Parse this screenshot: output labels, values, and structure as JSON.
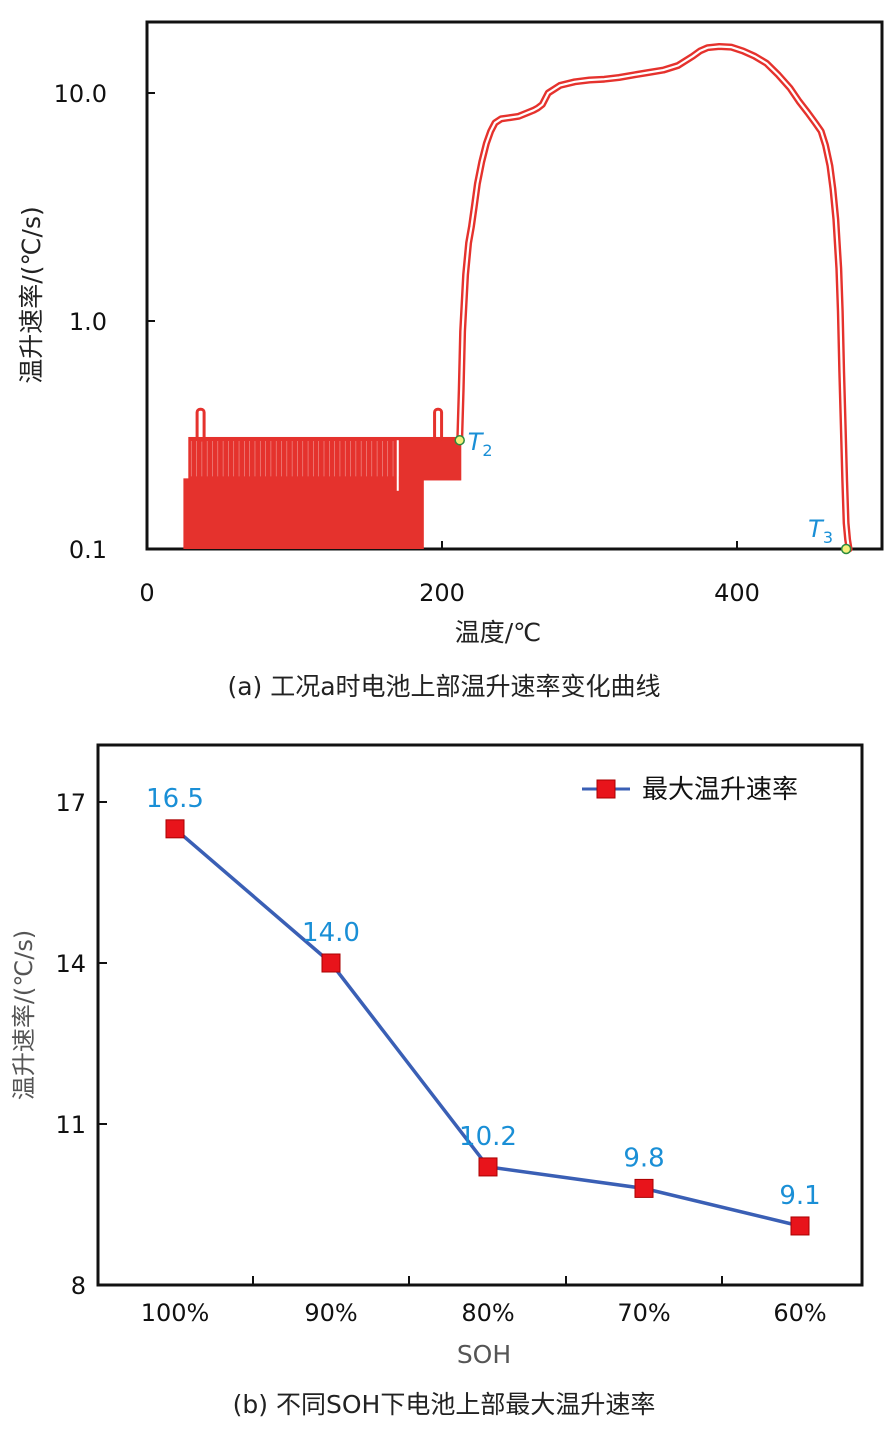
{
  "chart_data": [
    {
      "type": "line",
      "caption": "(a) 工况a时电池上部温升速率变化曲线",
      "xlabel": "温度/℃",
      "ylabel": "温升速率/(℃/s)",
      "yscale": "log",
      "xlim": [
        0,
        500
      ],
      "ylim": [
        0.1,
        20
      ],
      "x_ticks": [
        "0",
        "200",
        "400"
      ],
      "y_ticks": [
        "0.1",
        "1.0",
        "10.0"
      ],
      "series": [
        {
          "color": "#e5322d",
          "x": [
            212,
            213,
            214,
            216,
            218,
            220,
            222,
            224,
            227,
            230,
            233,
            236,
            240,
            246,
            252,
            258,
            262,
            265,
            268,
            272,
            280,
            290,
            300,
            310,
            320,
            330,
            340,
            350,
            360,
            370,
            375,
            380,
            388,
            396,
            404,
            412,
            420,
            428,
            436,
            442,
            448,
            453,
            457,
            460,
            463,
            465,
            467,
            469,
            470,
            471,
            472,
            473,
            474,
            475,
            476
          ],
          "y": [
            0.3,
            0.5,
            0.9,
            1.6,
            2.2,
            2.6,
            3.2,
            4.0,
            5.0,
            6.0,
            6.8,
            7.4,
            7.7,
            7.8,
            7.9,
            8.2,
            8.4,
            8.6,
            8.9,
            10.0,
            10.8,
            11.2,
            11.4,
            11.5,
            11.7,
            12.0,
            12.3,
            12.6,
            13.2,
            14.5,
            15.3,
            15.8,
            16.0,
            15.9,
            15.3,
            14.5,
            13.5,
            12.0,
            10.5,
            9.2,
            8.2,
            7.4,
            6.8,
            5.9,
            4.8,
            3.8,
            2.8,
            1.7,
            1.1,
            0.6,
            0.35,
            0.2,
            0.13,
            0.11,
            0.1
          ]
        }
      ],
      "noise_region": {
        "x": [
          24,
          213
        ],
        "y": [
          0.1,
          0.31
        ],
        "color": "#e5322d"
      },
      "annotations": [
        {
          "label": "T",
          "sub": "2",
          "x": 212,
          "y": 0.3
        },
        {
          "label": "T",
          "sub": "3",
          "x": 474,
          "y": 0.1
        }
      ]
    },
    {
      "type": "line",
      "caption": "(b) 不同SOH下电池上部最大温升速率",
      "xlabel": "SOH",
      "ylabel": "温升速率/(℃/s)",
      "categories": [
        "100%",
        "90%",
        "80%",
        "70%",
        "60%"
      ],
      "ylim": [
        8,
        18
      ],
      "y_ticks": [
        8,
        11,
        14,
        17
      ],
      "legend_position": "top-right",
      "series": [
        {
          "name": "最大温升速率",
          "values": [
            16.5,
            14.0,
            10.2,
            9.8,
            9.1
          ],
          "labels": [
            "16.5",
            "14.0",
            "10.2",
            "9.8",
            "9.1"
          ],
          "line_color": "#3a5fb5",
          "marker_color": "#e8141b"
        }
      ]
    }
  ]
}
